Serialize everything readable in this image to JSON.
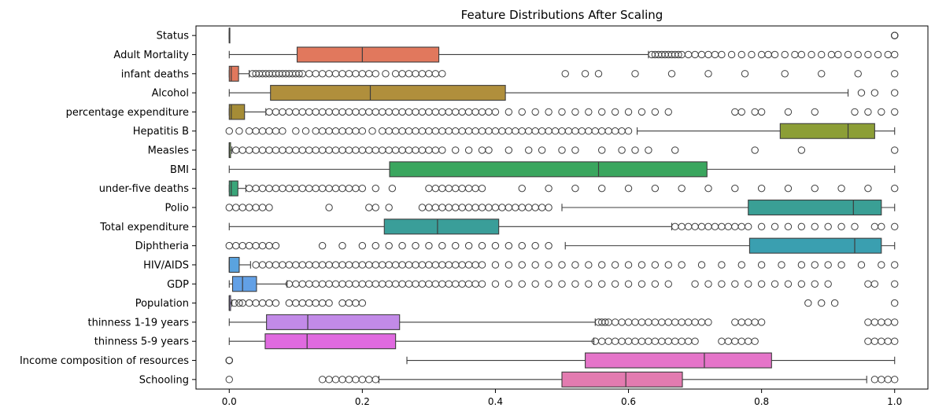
{
  "chart_data": {
    "type": "boxplot",
    "orientation": "horizontal",
    "title": "Feature Distributions After Scaling",
    "xlabel": "",
    "ylabel": "",
    "xlim": [
      -0.05,
      1.05
    ],
    "xticks": [
      0.0,
      0.2,
      0.4,
      0.6,
      0.8,
      1.0
    ],
    "xtick_labels": [
      "0.0",
      "0.2",
      "0.4",
      "0.6",
      "0.8",
      "1.0"
    ],
    "grid": false,
    "legend": "none",
    "series": [
      {
        "name": "Status",
        "color": "#ffffff",
        "whisker_low": 0.0,
        "q1": 0.0,
        "median": 0.0,
        "q3": 0.0,
        "whisker_high": 0.0,
        "outliers": [
          1.0,
          1.0,
          1.0
        ]
      },
      {
        "name": "Adult Mortality",
        "color": "#e1785d",
        "whisker_low": 0.0,
        "q1": 0.102,
        "median": 0.2,
        "q3": 0.315,
        "whisker_high": 0.63,
        "outliers": [
          0.635,
          0.64,
          0.645,
          0.65,
          0.655,
          0.66,
          0.665,
          0.67,
          0.675,
          0.68,
          0.69,
          0.7,
          0.71,
          0.72,
          0.73,
          0.74,
          0.755,
          0.77,
          0.785,
          0.8,
          0.81,
          0.82,
          0.835,
          0.85,
          0.86,
          0.875,
          0.89,
          0.905,
          0.915,
          0.93,
          0.945,
          0.96,
          0.975,
          0.99,
          1.0
        ]
      },
      {
        "name": "infant deaths",
        "color": "#e1785d",
        "whisker_low": 0.0,
        "q1": 0.0,
        "median": 0.003,
        "q3": 0.014,
        "whisker_high": 0.03,
        "outliers": [
          0.035,
          0.04,
          0.045,
          0.05,
          0.055,
          0.06,
          0.065,
          0.07,
          0.075,
          0.08,
          0.085,
          0.09,
          0.095,
          0.1,
          0.105,
          0.11,
          0.12,
          0.13,
          0.14,
          0.15,
          0.16,
          0.17,
          0.18,
          0.19,
          0.2,
          0.21,
          0.22,
          0.235,
          0.25,
          0.26,
          0.27,
          0.28,
          0.29,
          0.3,
          0.31,
          0.32,
          0.505,
          0.535,
          0.555,
          0.61,
          0.665,
          0.72,
          0.775,
          0.835,
          0.89,
          0.945,
          1.0
        ]
      },
      {
        "name": "Alcohol",
        "color": "#b08f3c",
        "whisker_low": 0.0,
        "q1": 0.062,
        "median": 0.212,
        "q3": 0.415,
        "whisker_high": 0.93,
        "outliers": [
          0.95,
          0.97,
          1.0
        ]
      },
      {
        "name": "percentage expenditure",
        "color": "#a58c36",
        "whisker_low": 0.0,
        "q1": 0.0,
        "median": 0.003,
        "q3": 0.023,
        "whisker_high": 0.055,
        "outliers": [
          0.06,
          0.07,
          0.08,
          0.09,
          0.1,
          0.11,
          0.12,
          0.13,
          0.14,
          0.15,
          0.16,
          0.17,
          0.18,
          0.19,
          0.2,
          0.21,
          0.22,
          0.23,
          0.24,
          0.25,
          0.26,
          0.27,
          0.28,
          0.29,
          0.3,
          0.31,
          0.32,
          0.33,
          0.34,
          0.35,
          0.36,
          0.37,
          0.38,
          0.39,
          0.4,
          0.42,
          0.44,
          0.46,
          0.48,
          0.5,
          0.52,
          0.54,
          0.56,
          0.58,
          0.6,
          0.62,
          0.64,
          0.66,
          0.76,
          0.77,
          0.79,
          0.8,
          0.84,
          0.88,
          0.94,
          0.96,
          0.98,
          1.0
        ]
      },
      {
        "name": "Hepatitis B",
        "color": "#8c9e36",
        "whisker_low": 0.613,
        "q1": 0.828,
        "median": 0.93,
        "q3": 0.97,
        "whisker_high": 1.0,
        "outliers": [
          0.0,
          0.015,
          0.03,
          0.04,
          0.05,
          0.06,
          0.07,
          0.08,
          0.1,
          0.115,
          0.13,
          0.14,
          0.15,
          0.16,
          0.17,
          0.18,
          0.19,
          0.2,
          0.215,
          0.23,
          0.24,
          0.25,
          0.26,
          0.27,
          0.28,
          0.29,
          0.3,
          0.31,
          0.32,
          0.33,
          0.34,
          0.35,
          0.36,
          0.37,
          0.38,
          0.39,
          0.4,
          0.41,
          0.42,
          0.43,
          0.44,
          0.45,
          0.46,
          0.47,
          0.48,
          0.49,
          0.5,
          0.51,
          0.52,
          0.53,
          0.54,
          0.55,
          0.56,
          0.57,
          0.58,
          0.59,
          0.6
        ]
      },
      {
        "name": "Measles",
        "color": "#6aa23a",
        "whisker_low": 0.0,
        "q1": 0.0,
        "median": 0.0,
        "q3": 0.002,
        "whisker_high": 0.004,
        "outliers": [
          0.01,
          0.02,
          0.03,
          0.04,
          0.05,
          0.06,
          0.07,
          0.08,
          0.09,
          0.1,
          0.11,
          0.12,
          0.13,
          0.14,
          0.15,
          0.16,
          0.17,
          0.18,
          0.19,
          0.2,
          0.21,
          0.22,
          0.23,
          0.24,
          0.25,
          0.26,
          0.27,
          0.28,
          0.29,
          0.3,
          0.31,
          0.32,
          0.34,
          0.36,
          0.38,
          0.39,
          0.42,
          0.45,
          0.47,
          0.5,
          0.52,
          0.56,
          0.59,
          0.61,
          0.63,
          0.67,
          0.79,
          0.86,
          1.0
        ]
      },
      {
        "name": "BMI",
        "color": "#3aa65e",
        "whisker_low": 0.0,
        "q1": 0.241,
        "median": 0.555,
        "q3": 0.718,
        "whisker_high": 1.0,
        "outliers": []
      },
      {
        "name": "under-five deaths",
        "color": "#3aa67a",
        "whisker_low": 0.0,
        "q1": 0.0,
        "median": 0.003,
        "q3": 0.013,
        "whisker_high": 0.025,
        "outliers": [
          0.03,
          0.04,
          0.05,
          0.06,
          0.07,
          0.08,
          0.09,
          0.1,
          0.11,
          0.12,
          0.13,
          0.14,
          0.15,
          0.16,
          0.17,
          0.18,
          0.19,
          0.2,
          0.22,
          0.245,
          0.3,
          0.31,
          0.32,
          0.33,
          0.34,
          0.35,
          0.36,
          0.37,
          0.38,
          0.44,
          0.48,
          0.52,
          0.56,
          0.6,
          0.64,
          0.68,
          0.72,
          0.76,
          0.8,
          0.84,
          0.88,
          0.92,
          0.96,
          1.0
        ]
      },
      {
        "name": "Polio",
        "color": "#3a9f95",
        "whisker_low": 0.5,
        "q1": 0.78,
        "median": 0.938,
        "q3": 0.98,
        "whisker_high": 1.0,
        "outliers": [
          0.0,
          0.01,
          0.02,
          0.03,
          0.04,
          0.05,
          0.06,
          0.15,
          0.21,
          0.22,
          0.24,
          0.29,
          0.3,
          0.31,
          0.32,
          0.33,
          0.34,
          0.35,
          0.36,
          0.37,
          0.38,
          0.39,
          0.4,
          0.41,
          0.42,
          0.43,
          0.44,
          0.45,
          0.46,
          0.47,
          0.48
        ]
      },
      {
        "name": "Total expenditure",
        "color": "#3a9e99",
        "whisker_low": 0.0,
        "q1": 0.233,
        "median": 0.313,
        "q3": 0.405,
        "whisker_high": 0.665,
        "outliers": [
          0.67,
          0.68,
          0.69,
          0.7,
          0.71,
          0.72,
          0.73,
          0.74,
          0.75,
          0.76,
          0.77,
          0.78,
          0.8,
          0.82,
          0.84,
          0.86,
          0.88,
          0.9,
          0.92,
          0.94,
          0.97,
          0.98,
          1.0
        ]
      },
      {
        "name": "Diphtheria",
        "color": "#3a9fb0",
        "whisker_low": 0.505,
        "q1": 0.782,
        "median": 0.94,
        "q3": 0.98,
        "whisker_high": 1.0,
        "outliers": [
          0.0,
          0.01,
          0.02,
          0.03,
          0.04,
          0.05,
          0.06,
          0.07,
          0.14,
          0.17,
          0.2,
          0.22,
          0.24,
          0.26,
          0.28,
          0.3,
          0.32,
          0.34,
          0.36,
          0.38,
          0.4,
          0.42,
          0.44,
          0.46,
          0.48
        ]
      },
      {
        "name": "HIV/AIDS",
        "color": "#5aa3df",
        "whisker_low": 0.0,
        "q1": 0.0,
        "median": 0.0,
        "q3": 0.015,
        "whisker_high": 0.032,
        "outliers": [
          0.04,
          0.05,
          0.06,
          0.07,
          0.08,
          0.09,
          0.1,
          0.11,
          0.12,
          0.13,
          0.14,
          0.15,
          0.16,
          0.17,
          0.18,
          0.19,
          0.2,
          0.21,
          0.22,
          0.23,
          0.24,
          0.25,
          0.26,
          0.27,
          0.28,
          0.29,
          0.3,
          0.31,
          0.32,
          0.33,
          0.34,
          0.35,
          0.36,
          0.37,
          0.38,
          0.4,
          0.42,
          0.44,
          0.46,
          0.48,
          0.5,
          0.52,
          0.54,
          0.56,
          0.58,
          0.6,
          0.62,
          0.64,
          0.66,
          0.68,
          0.71,
          0.74,
          0.77,
          0.8,
          0.83,
          0.86,
          0.88,
          0.9,
          0.92,
          0.95,
          0.98,
          1.0
        ]
      },
      {
        "name": "GDP",
        "color": "#62a0e6",
        "whisker_low": 0.0,
        "q1": 0.005,
        "median": 0.02,
        "q3": 0.041,
        "whisker_high": 0.087,
        "outliers": [
          0.09,
          0.1,
          0.11,
          0.12,
          0.13,
          0.14,
          0.15,
          0.16,
          0.17,
          0.18,
          0.19,
          0.2,
          0.21,
          0.22,
          0.23,
          0.24,
          0.25,
          0.26,
          0.27,
          0.28,
          0.29,
          0.3,
          0.31,
          0.32,
          0.33,
          0.34,
          0.35,
          0.36,
          0.37,
          0.38,
          0.4,
          0.42,
          0.44,
          0.46,
          0.48,
          0.5,
          0.52,
          0.54,
          0.56,
          0.58,
          0.6,
          0.62,
          0.64,
          0.66,
          0.7,
          0.72,
          0.74,
          0.76,
          0.78,
          0.8,
          0.82,
          0.84,
          0.86,
          0.88,
          0.9,
          0.96,
          0.97,
          1.0
        ]
      },
      {
        "name": "Population",
        "color": "#a085e0",
        "whisker_low": 0.0,
        "q1": 0.0,
        "median": 0.0,
        "q3": 0.002,
        "whisker_high": 0.004,
        "outliers": [
          0.008,
          0.015,
          0.02,
          0.03,
          0.04,
          0.05,
          0.06,
          0.07,
          0.09,
          0.1,
          0.11,
          0.12,
          0.13,
          0.14,
          0.15,
          0.17,
          0.18,
          0.19,
          0.2,
          0.87,
          0.89,
          0.91,
          1.0
        ]
      },
      {
        "name": "thinness  1-19 years",
        "color": "#c28ae8",
        "whisker_low": 0.0,
        "q1": 0.056,
        "median": 0.118,
        "q3": 0.256,
        "whisker_high": 0.55,
        "outliers": [
          0.555,
          0.56,
          0.565,
          0.57,
          0.58,
          0.59,
          0.6,
          0.61,
          0.62,
          0.63,
          0.64,
          0.65,
          0.66,
          0.67,
          0.68,
          0.69,
          0.7,
          0.71,
          0.72,
          0.76,
          0.77,
          0.78,
          0.79,
          0.8,
          0.96,
          0.97,
          0.98,
          0.99,
          1.0
        ]
      },
      {
        "name": "thinness 5-9 years",
        "color": "#e06ae0",
        "whisker_low": 0.0,
        "q1": 0.054,
        "median": 0.117,
        "q3": 0.25,
        "whisker_high": 0.548,
        "outliers": [
          0.55,
          0.56,
          0.57,
          0.58,
          0.59,
          0.6,
          0.61,
          0.62,
          0.63,
          0.64,
          0.65,
          0.66,
          0.67,
          0.68,
          0.69,
          0.7,
          0.74,
          0.75,
          0.76,
          0.77,
          0.78,
          0.79,
          0.96,
          0.97,
          0.98,
          0.99,
          1.0
        ]
      },
      {
        "name": "Income composition of resources",
        "color": "#e574c9",
        "whisker_low": 0.267,
        "q1": 0.535,
        "median": 0.714,
        "q3": 0.815,
        "whisker_high": 1.0,
        "outliers": [
          0.0,
          0.0,
          0.0
        ]
      },
      {
        "name": "Schooling",
        "color": "#e37bb0",
        "whisker_low": 0.225,
        "q1": 0.5,
        "median": 0.596,
        "q3": 0.681,
        "whisker_high": 0.958,
        "outliers": [
          0.0,
          0.14,
          0.15,
          0.16,
          0.17,
          0.18,
          0.19,
          0.2,
          0.21,
          0.22,
          0.97,
          0.98,
          0.99,
          1.0
        ]
      }
    ]
  }
}
